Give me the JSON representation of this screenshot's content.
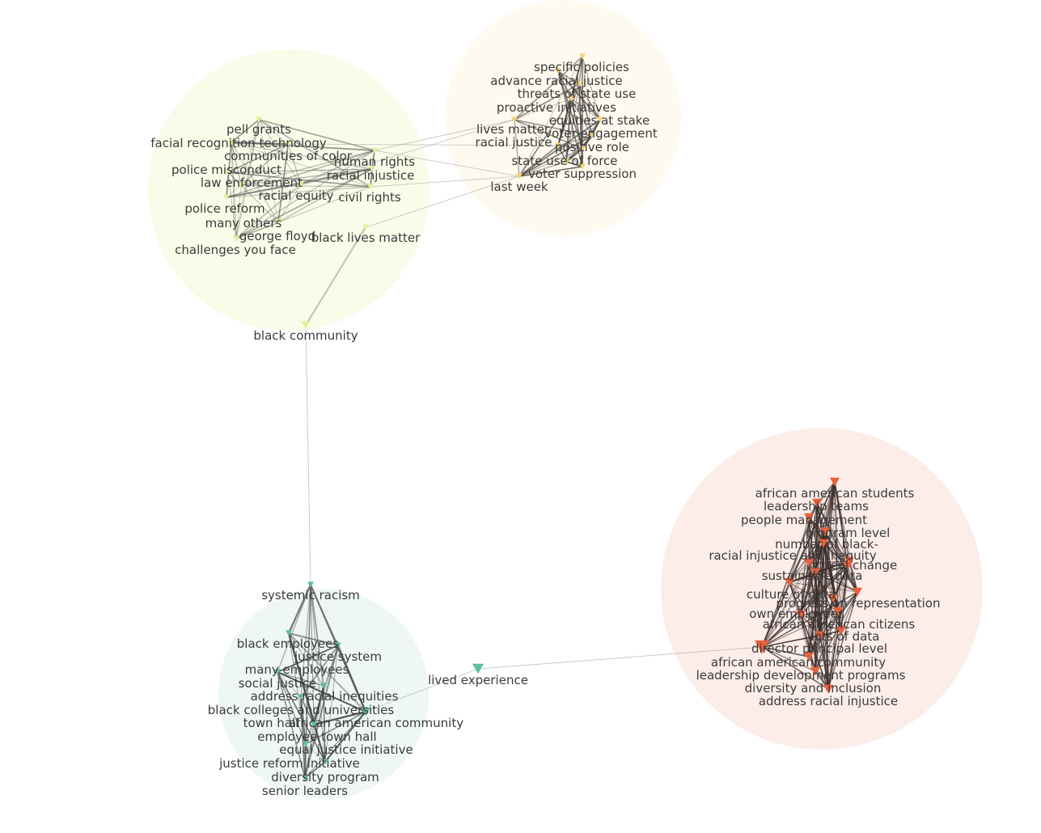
{
  "clusters": [
    {
      "id": "yellow",
      "color": "#fbfbea",
      "node_color": "#e9f2a6",
      "nodes": [
        "pell grants",
        "facial recognition technology",
        "communities of color",
        "human rights",
        "police misconduct",
        "racial injustice",
        "law enforcement",
        "racial equity",
        "civil rights",
        "police reform",
        "many others",
        "george floyd",
        "black lives matter",
        "challenges you face",
        "black community"
      ]
    },
    {
      "id": "orange",
      "color": "#fefaef",
      "node_color": "#f7d77e",
      "nodes": [
        "specific policies",
        "advance racial justice",
        "threats of state use",
        "proactive initiatives",
        "lives matter",
        "equities at stake",
        "racial justice",
        "voter engagement",
        "positive role",
        "state use of force",
        "voter suppression",
        "last week"
      ]
    },
    {
      "id": "red",
      "color": "#fcede9",
      "node_color": "#e8613a",
      "nodes": [
        "african american students",
        "leadership teams",
        "people management",
        "program level",
        "number of black-",
        "racial injustice and inequity",
        "real change",
        "sustainable data",
        "culture of data",
        "progress on representation",
        "own employees",
        "african american citizens",
        "lots of data",
        "director principal level",
        "african american community",
        "leadership development programs",
        "diversity and inclusion",
        "address racial injustice"
      ]
    },
    {
      "id": "green",
      "color": "#eef7f3",
      "node_color": "#5dbf97",
      "nodes": [
        "systemic racism",
        "black employees",
        "justice system",
        "many employees",
        "social justice",
        "address racial inequities",
        "black colleges and universities",
        "town hall",
        "african american community",
        "employee town hall",
        "equal justice initiative",
        "justice reform initiative",
        "diversity program",
        "senior leaders",
        "lived experience"
      ]
    }
  ]
}
